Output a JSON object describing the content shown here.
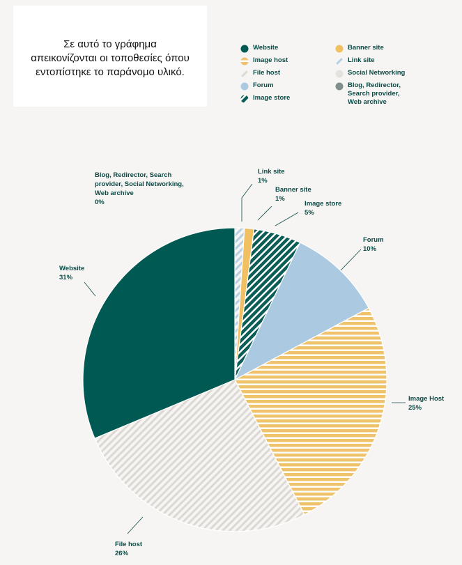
{
  "description": "Σε αυτό το γράφημα απεικονίζονται οι τοποθεσίες όπου εντοπίστηκε το παράνομο υλικό.",
  "colors": {
    "website": "#005a53",
    "banner": "#f0c063",
    "image_host": "#efc36c",
    "file_host": "#dcd8d3",
    "link_site": "#b6cfe3",
    "social": "#e5e1dd",
    "forum": "#abc9e0",
    "blog": "#7e8f8c",
    "image_store": "#0b5e57"
  },
  "legend": [
    {
      "label": "Website",
      "key": "website",
      "pattern": "solid"
    },
    {
      "label": "Banner site",
      "key": "banner",
      "pattern": "solid"
    },
    {
      "label": "Image host",
      "key": "image_host",
      "pattern": "hstripe"
    },
    {
      "label": "Link site",
      "key": "link_site",
      "pattern": "diag"
    },
    {
      "label": "File host",
      "key": "file_host",
      "pattern": "diag"
    },
    {
      "label": "Social Networking",
      "key": "social",
      "pattern": "solid"
    },
    {
      "label": "Forum",
      "key": "forum",
      "pattern": "solid"
    },
    {
      "label": "Blog, Redirector,\nSearch provider,\nWeb archive",
      "key": "blog",
      "pattern": "solid"
    },
    {
      "label": "Image store",
      "key": "image_store",
      "pattern": "diag"
    }
  ],
  "chart_data": {
    "type": "pie",
    "slices": [
      {
        "name": "Link site",
        "value": 1,
        "label": "Link site\n1%",
        "key": "link_site",
        "pattern": "diag"
      },
      {
        "name": "Banner site",
        "value": 1,
        "label": "Banner site\n1%",
        "key": "banner",
        "pattern": "solid"
      },
      {
        "name": "Image store",
        "value": 5,
        "label": "Image store\n5%",
        "key": "image_store",
        "pattern": "diag"
      },
      {
        "name": "Forum",
        "value": 10,
        "label": "Forum\n10%",
        "key": "forum",
        "pattern": "solid"
      },
      {
        "name": "Image Host",
        "value": 25,
        "label": "Image Host\n25%",
        "key": "image_host",
        "pattern": "hstripe"
      },
      {
        "name": "File host",
        "value": 26,
        "label": "File host\n26%",
        "key": "file_host",
        "pattern": "diag"
      },
      {
        "name": "Website",
        "value": 31,
        "label": "Website\n31%",
        "key": "website",
        "pattern": "solid"
      },
      {
        "name": "Blog, Redirector, Search provider, Social Networking, Web archive",
        "value": 0,
        "label": "Blog, Redirector, Search\nprovider, Social Networking,\nWeb archive\n0%",
        "key": "blog",
        "pattern": "solid"
      }
    ]
  }
}
